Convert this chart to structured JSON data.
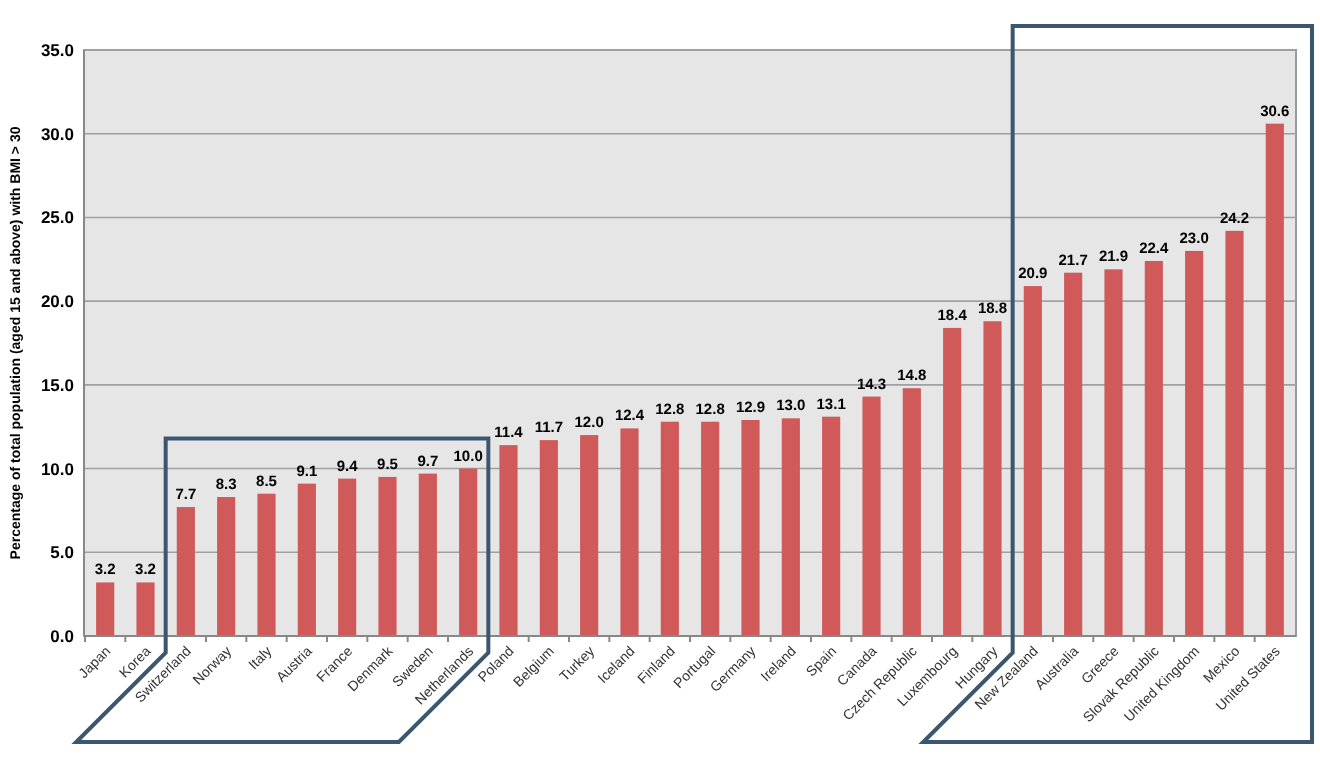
{
  "chart_data": {
    "type": "bar",
    "ylabel": "Percentage of total population (aged 15 and above) with BMI > 30",
    "categories": [
      "Japan",
      "Korea",
      "Switzerland",
      "Norway",
      "Italy",
      "Austria",
      "France",
      "Denmark",
      "Sweden",
      "Netherlands",
      "Poland",
      "Belgium",
      "Turkey",
      "Iceland",
      "Finland",
      "Portugal",
      "Germany",
      "Ireland",
      "Spain",
      "Canada",
      "Czech Republic",
      "Luxembourg",
      "Hungary",
      "New Zealand",
      "Australia",
      "Greece",
      "Slovak Republic",
      "United Kingdom",
      "Mexico",
      "United States"
    ],
    "values": [
      3.2,
      3.2,
      7.7,
      8.3,
      8.5,
      9.1,
      9.4,
      9.5,
      9.7,
      10.0,
      11.4,
      11.7,
      12.0,
      12.4,
      12.8,
      12.8,
      12.9,
      13.0,
      13.1,
      14.3,
      14.8,
      18.4,
      18.8,
      20.9,
      21.7,
      21.9,
      22.4,
      23.0,
      24.2,
      30.6
    ],
    "value_labels": [
      "3.2",
      "3.2",
      "7.7",
      "8.3",
      "8.5",
      "9.1",
      "9.4",
      "9.5",
      "9.7",
      "10.0",
      "11.4",
      "11.7",
      "12.0",
      "12.4",
      "12.8",
      "12.8",
      "12.9",
      "13.0",
      "13.1",
      "14.3",
      "14.8",
      "18.4",
      "18.8",
      "20.9",
      "21.7",
      "21.9",
      "22.4",
      "23.0",
      "24.2",
      "30.6"
    ],
    "color": "#d05a5a",
    "ylim": [
      0,
      35
    ],
    "yticks": [
      {
        "value": 0,
        "label": "0.0"
      },
      {
        "value": 5,
        "label": "5.0"
      },
      {
        "value": 10,
        "label": "10.0"
      },
      {
        "value": 15,
        "label": "15.0"
      },
      {
        "value": 20,
        "label": "20.0"
      },
      {
        "value": 25,
        "label": "25.0"
      },
      {
        "value": 30,
        "label": "30.0"
      },
      {
        "value": 35,
        "label": "35.0"
      }
    ],
    "grid": "y"
  }
}
